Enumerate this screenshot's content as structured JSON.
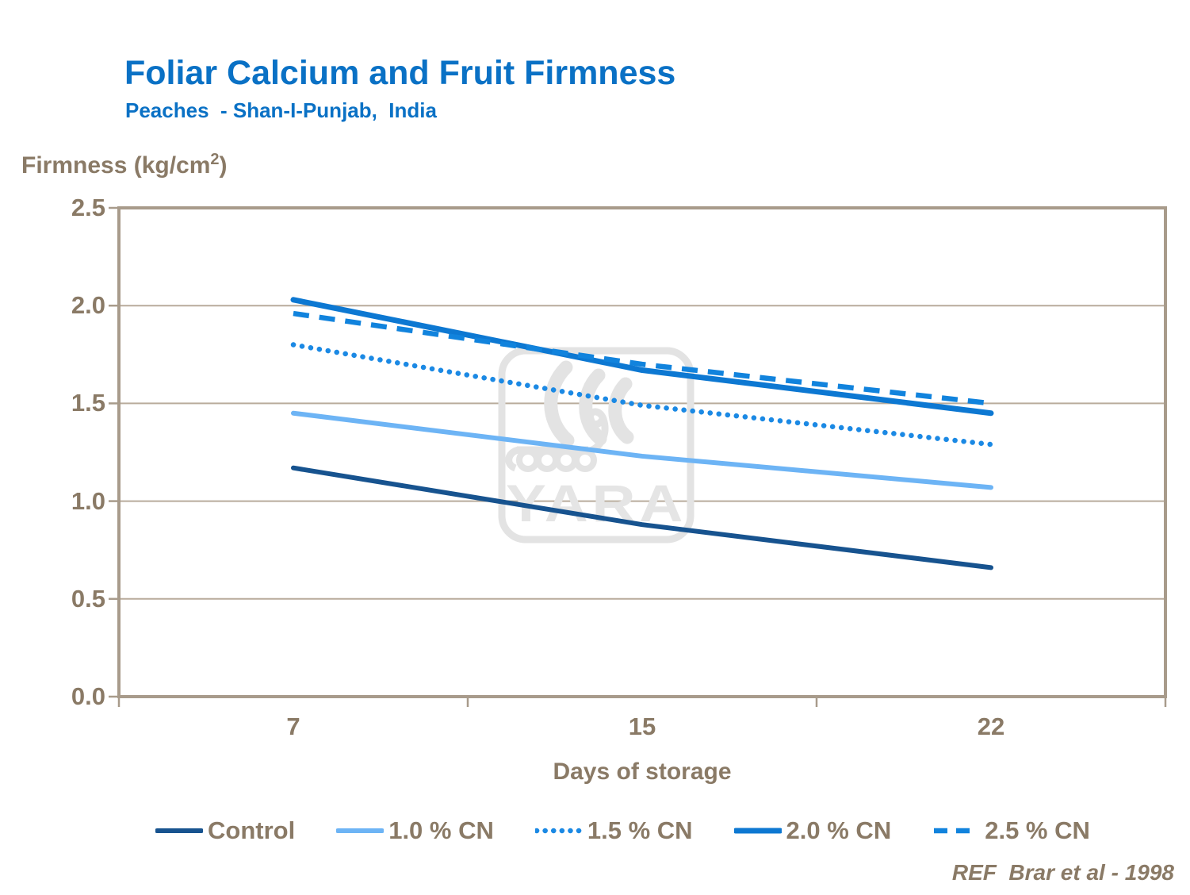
{
  "header": {
    "title": "Foliar Calcium and Fruit Firmness",
    "subtitle": "Peaches  - Shan-I-Punjab,  India"
  },
  "colors": {
    "title_blue": "#0a71c5",
    "text_brown": "#8a7a66",
    "plot_border": "#a89b8b",
    "gridline": "#b9ac9c",
    "watermark_gray": "#e3e3e3",
    "background": "#ffffff"
  },
  "chart_data": {
    "type": "line",
    "title": "Foliar Calcium and Fruit Firmness",
    "subtitle": "Peaches  - Shan-I-Punjab,  India",
    "xlabel": "Days of storage",
    "ylabel": "Firmness (kg/cm2)",
    "ylabel_prefix": "Firmness (kg/cm",
    "ylabel_sup": "2",
    "ylabel_suffix": ")",
    "categories": [
      "7",
      "15",
      "22"
    ],
    "series": [
      {
        "name": "Control",
        "values": [
          1.17,
          0.88,
          0.66
        ],
        "color": "#17538f",
        "style": "solid",
        "width": 6
      },
      {
        "name": "1.0 % CN",
        "values": [
          1.45,
          1.23,
          1.07
        ],
        "color": "#6db4f5",
        "style": "solid",
        "width": 6
      },
      {
        "name": "1.5 % CN",
        "values": [
          1.8,
          1.49,
          1.29
        ],
        "color": "#1b89e4",
        "style": "dotted",
        "width": 6.5
      },
      {
        "name": "2.0 % CN",
        "values": [
          2.03,
          1.67,
          1.45
        ],
        "color": "#0d78d2",
        "style": "solid",
        "width": 7
      },
      {
        "name": "2.5 % CN",
        "values": [
          1.96,
          1.7,
          1.5
        ],
        "color": "#1183dd",
        "style": "dashed",
        "width": 6.5
      }
    ],
    "ylim": [
      0.0,
      2.5
    ],
    "ytick_step": 0.5,
    "ytick_labels": [
      "0.0",
      "0.5",
      "1.0",
      "1.5",
      "2.0",
      "2.5"
    ],
    "grid": true,
    "legend_position": "bottom"
  },
  "watermark": {
    "text": "YARA"
  },
  "footer": {
    "ref": "REF  Brar et al - 1998"
  }
}
